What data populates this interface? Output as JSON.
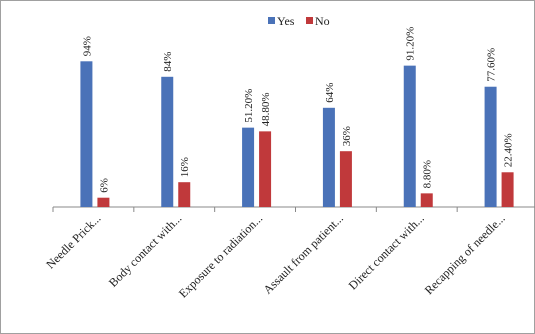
{
  "chart_data": {
    "type": "bar",
    "categories": [
      "Needle Prick...",
      "Body contact with...",
      "Exposure to radiation...",
      "Assault from patient...",
      "Direct contact with...",
      "Recapping of needle..."
    ],
    "series": [
      {
        "name": "Yes",
        "color": "#4a72b8",
        "values": [
          94,
          84,
          51.2,
          64,
          91.2,
          77.6
        ],
        "labels": [
          "94%",
          "84%",
          "51.20%",
          "64%",
          "91.20%",
          "77.60%"
        ]
      },
      {
        "name": "No",
        "color": "#c0393b",
        "values": [
          6,
          16,
          48.8,
          36,
          8.8,
          22.4
        ],
        "labels": [
          "6%",
          "16%",
          "48.80%",
          "36%",
          "8.80%",
          "22.40%"
        ]
      }
    ],
    "ylim": [
      0,
      100
    ],
    "grid": false,
    "legend_position": "top"
  }
}
